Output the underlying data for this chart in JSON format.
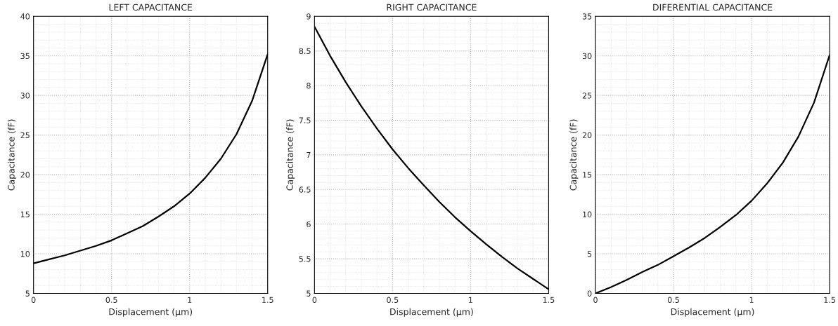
{
  "chart_data": [
    {
      "type": "line",
      "title": "LEFT CAPACITANCE",
      "xlabel": "Displacement (µm)",
      "ylabel": "Capacitance (fF)",
      "x": [
        0,
        0.1,
        0.2,
        0.3,
        0.4,
        0.5,
        0.6,
        0.7,
        0.8,
        0.9,
        1.0,
        1.1,
        1.2,
        1.3,
        1.4,
        1.5
      ],
      "series": [
        {
          "color": "#000000",
          "values": [
            8.8,
            9.3,
            9.8,
            10.4,
            11.0,
            11.7,
            12.6,
            13.5,
            14.7,
            16.0,
            17.6,
            19.6,
            22.0,
            25.1,
            29.3,
            35.2
          ]
        }
      ],
      "xlim": [
        0,
        1.5
      ],
      "xticks": [
        0,
        0.5,
        1,
        1.5
      ],
      "ylim": [
        5,
        40
      ],
      "yticks": [
        5,
        10,
        15,
        20,
        25,
        30,
        35,
        40
      ],
      "grid": true,
      "line_style": "solid"
    },
    {
      "type": "line",
      "title": "RIGHT CAPACITANCE",
      "xlabel": "Displacement (µm)",
      "ylabel": "Capacitance (fF)",
      "x": [
        0,
        0.1,
        0.2,
        0.3,
        0.4,
        0.5,
        0.6,
        0.7,
        0.8,
        0.9,
        1.0,
        1.1,
        1.2,
        1.3,
        1.4,
        1.5
      ],
      "series": [
        {
          "color": "#000000",
          "values": [
            8.85,
            8.43,
            8.05,
            7.7,
            7.38,
            7.08,
            6.81,
            6.56,
            6.32,
            6.1,
            5.9,
            5.71,
            5.53,
            5.36,
            5.21,
            5.06
          ]
        }
      ],
      "xlim": [
        0,
        1.5
      ],
      "xticks": [
        0,
        0.5,
        1,
        1.5
      ],
      "ylim": [
        5,
        9
      ],
      "yticks": [
        5,
        5.5,
        6,
        6.5,
        7,
        7.5,
        8,
        8.5,
        9
      ],
      "grid": true,
      "line_style": "solid"
    },
    {
      "type": "line",
      "title": "DIFERENTIAL CAPACITANCE",
      "xlabel": "Displacement (µm)",
      "ylabel": "Capacitance (fF)",
      "x": [
        0,
        0.1,
        0.2,
        0.3,
        0.4,
        0.5,
        0.6,
        0.7,
        0.8,
        0.9,
        1.0,
        1.1,
        1.2,
        1.3,
        1.4,
        1.5
      ],
      "series": [
        {
          "color": "#000000",
          "values": [
            0,
            0.8,
            1.7,
            2.7,
            3.6,
            4.7,
            5.8,
            7.0,
            8.4,
            9.9,
            11.7,
            13.9,
            16.5,
            19.8,
            24.1,
            30.1
          ]
        }
      ],
      "xlim": [
        0,
        1.5
      ],
      "xticks": [
        0,
        0.5,
        1,
        1.5
      ],
      "ylim": [
        0,
        35
      ],
      "yticks": [
        0,
        5,
        10,
        15,
        20,
        25,
        30,
        35
      ],
      "grid": true,
      "line_style": "solid"
    }
  ]
}
